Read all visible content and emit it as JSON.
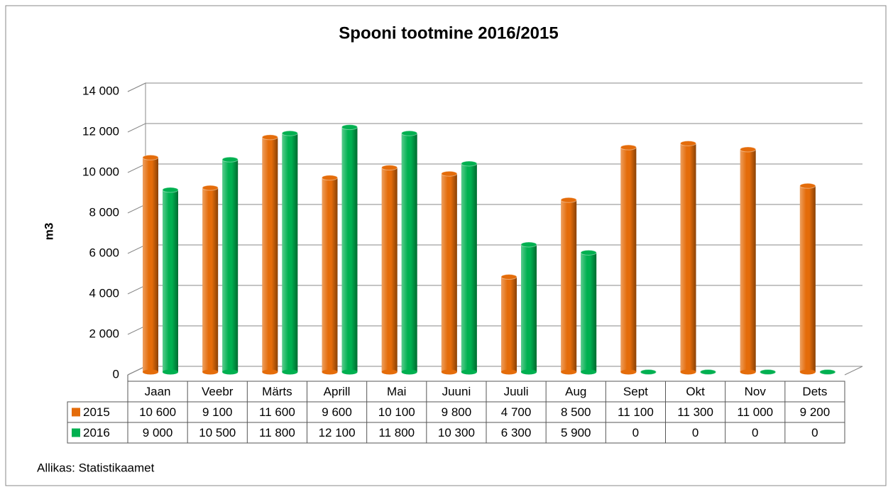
{
  "chart_data": {
    "type": "bar",
    "title": "Spooni tootmine 2016/2015",
    "y_label": "m3",
    "source": "Allikas: Statistikaamet",
    "categories": [
      "Jaan",
      "Veebr",
      "Märts",
      "Aprill",
      "Mai",
      "Juuni",
      "Juuli",
      "Aug",
      "Sept",
      "Okt",
      "Nov",
      "Dets"
    ],
    "series": [
      {
        "name": "2015",
        "color": "#e46c0a",
        "values": [
          10600,
          9100,
          11600,
          9600,
          10100,
          9800,
          4700,
          8500,
          11100,
          11300,
          11000,
          9200
        ],
        "value_labels": [
          "10 600",
          "9 100",
          "11 600",
          "9 600",
          "10 100",
          "9 800",
          "4 700",
          "8 500",
          "11 100",
          "11 300",
          "11 000",
          "9 200"
        ]
      },
      {
        "name": "2016",
        "color": "#00b050",
        "values": [
          9000,
          10500,
          11800,
          12100,
          11800,
          10300,
          6300,
          5900,
          0,
          0,
          0,
          0
        ],
        "value_labels": [
          "9 000",
          "10 500",
          "11 800",
          "12 100",
          "11 800",
          "10 300",
          "6 300",
          "5 900",
          "0",
          "0",
          "0",
          "0"
        ]
      }
    ],
    "ylim": [
      0,
      14000
    ],
    "yticks": [
      0,
      {
        "value": 2000,
        "label": "2 000"
      },
      {
        "value": 4000,
        "label": "4 000"
      },
      {
        "value": 6000,
        "label": "6 000"
      },
      {
        "value": 8000,
        "label": "8 000"
      },
      {
        "value": 10000,
        "label": "10 000"
      },
      {
        "value": 12000,
        "label": "12 000"
      },
      {
        "value": 14000,
        "label": "14 000"
      }
    ],
    "grid": true
  }
}
